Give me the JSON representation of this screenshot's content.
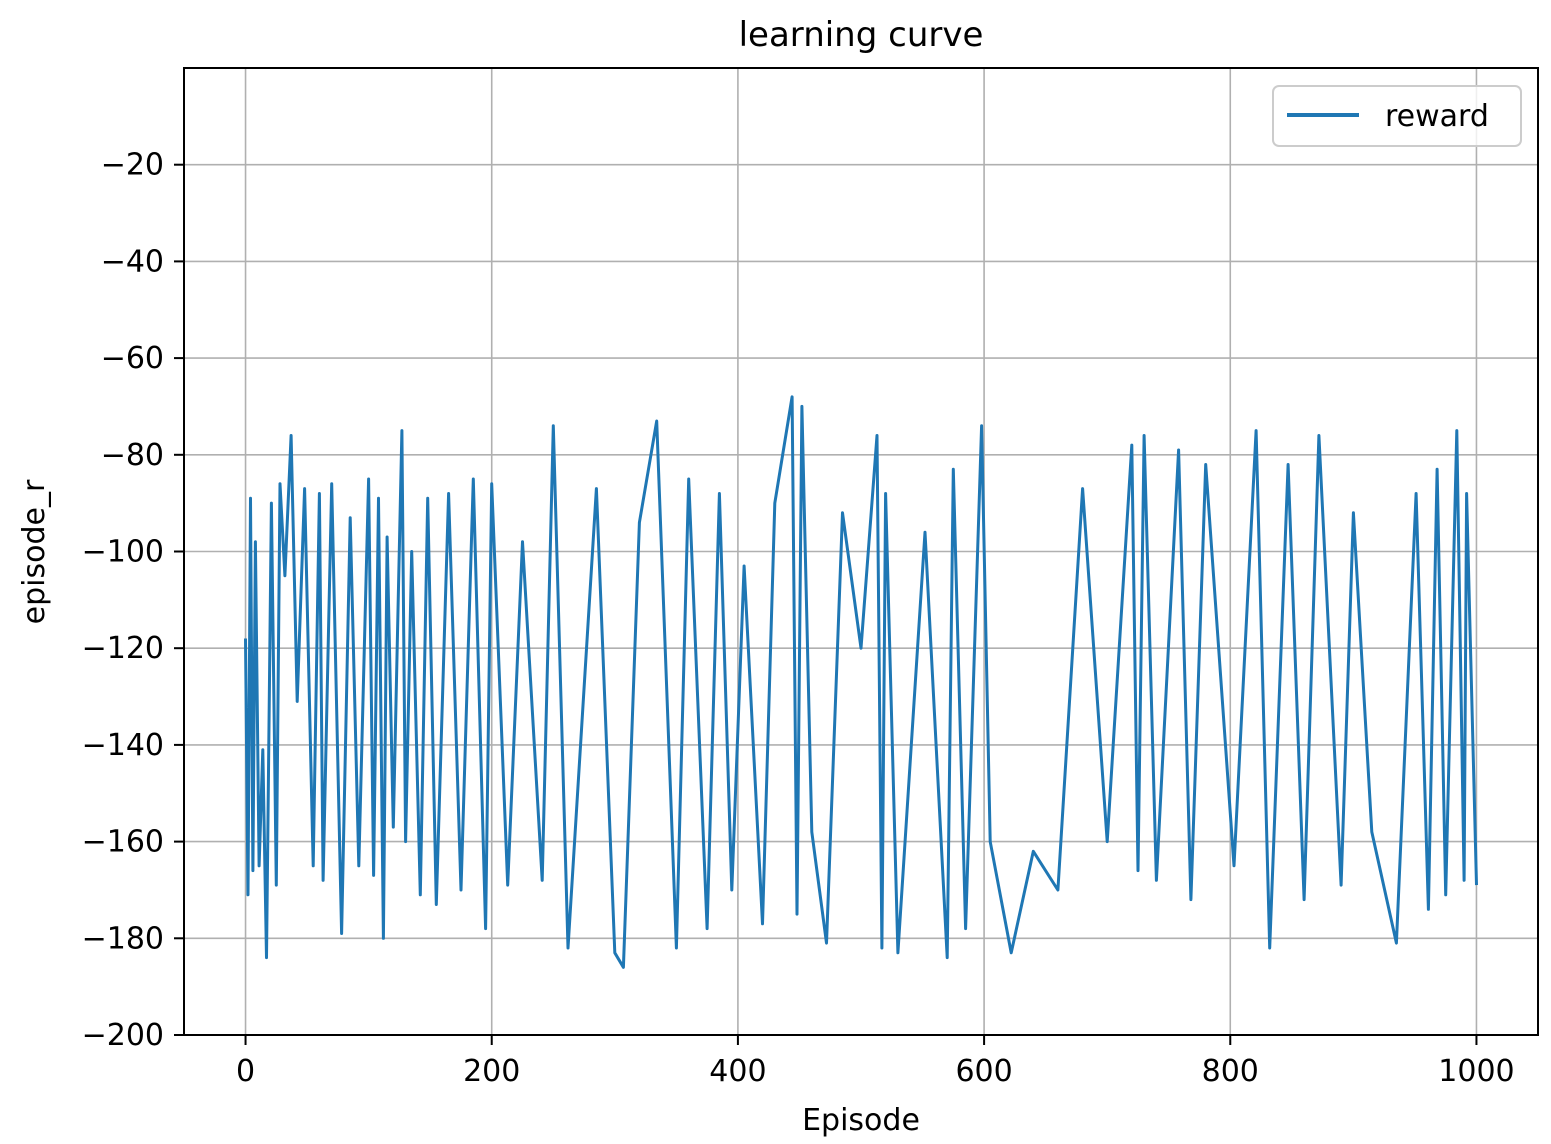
{
  "chart_data": {
    "type": "line",
    "title": "learning curve",
    "xlabel": "Episode",
    "ylabel": "episode_r",
    "xlim": [
      -50,
      1050
    ],
    "ylim": [
      -200,
      0
    ],
    "xticks": [
      0,
      200,
      400,
      600,
      800,
      1000
    ],
    "yticks": [
      -200,
      -180,
      -160,
      -140,
      -120,
      -100,
      -80,
      -60,
      -40,
      -20
    ],
    "xtick_labels": [
      "0",
      "200",
      "400",
      "600",
      "800",
      "1000"
    ],
    "ytick_labels": [
      "−200",
      "−180",
      "−160",
      "−140",
      "−120",
      "−100",
      "−80",
      "−60",
      "−40",
      "−20"
    ],
    "grid": true,
    "legend": {
      "position": "top-right",
      "entries": [
        "reward"
      ]
    },
    "series": [
      {
        "name": "reward",
        "color": "#1f77b4",
        "x": [
          0,
          2,
          4,
          6,
          8,
          11,
          14,
          17,
          21,
          25,
          28,
          32,
          37,
          42,
          48,
          55,
          60,
          63,
          70,
          78,
          85,
          92,
          100,
          104,
          108,
          112,
          115,
          120,
          127,
          130,
          135,
          142,
          148,
          155,
          165,
          175,
          185,
          195,
          200,
          213,
          225,
          241,
          250,
          262,
          285,
          300,
          307,
          320,
          334,
          350,
          360,
          375,
          385,
          395,
          405,
          420,
          430,
          444,
          448,
          452,
          460,
          472,
          485,
          500,
          513,
          517,
          520,
          530,
          552,
          570,
          575,
          585,
          598,
          605,
          622,
          640,
          660,
          680,
          700,
          720,
          725,
          730,
          740,
          758,
          768,
          780,
          803,
          821,
          832,
          847,
          860,
          872,
          890,
          900,
          915,
          935,
          951,
          961,
          968,
          975,
          984,
          990,
          992,
          1000
        ],
        "values": [
          -118,
          -171,
          -89,
          -166,
          -98,
          -165,
          -141,
          -184,
          -90,
          -169,
          -86,
          -105,
          -76,
          -131,
          -87,
          -165,
          -88,
          -168,
          -86,
          -179,
          -93,
          -165,
          -85,
          -167,
          -89,
          -180,
          -97,
          -157,
          -75,
          -160,
          -100,
          -171,
          -89,
          -173,
          -88,
          -170,
          -85,
          -178,
          -86,
          -169,
          -98,
          -168,
          -74,
          -182,
          -87,
          -183,
          -186,
          -94,
          -73,
          -182,
          -85,
          -178,
          -88,
          -170,
          -103,
          -177,
          -90,
          -68,
          -175,
          -70,
          -158,
          -181,
          -92,
          -120,
          -76,
          -182,
          -88,
          -183,
          -96,
          -184,
          -83,
          -178,
          -74,
          -160,
          -183,
          -162,
          -170,
          -87,
          -160,
          -78,
          -166,
          -76,
          -168,
          -79,
          -172,
          -82,
          -165,
          -75,
          -182,
          -82,
          -172,
          -76,
          -169,
          -92,
          -158,
          -181,
          -88,
          -174,
          -83,
          -171,
          -75,
          -168,
          -88,
          -169
        ]
      }
    ]
  }
}
